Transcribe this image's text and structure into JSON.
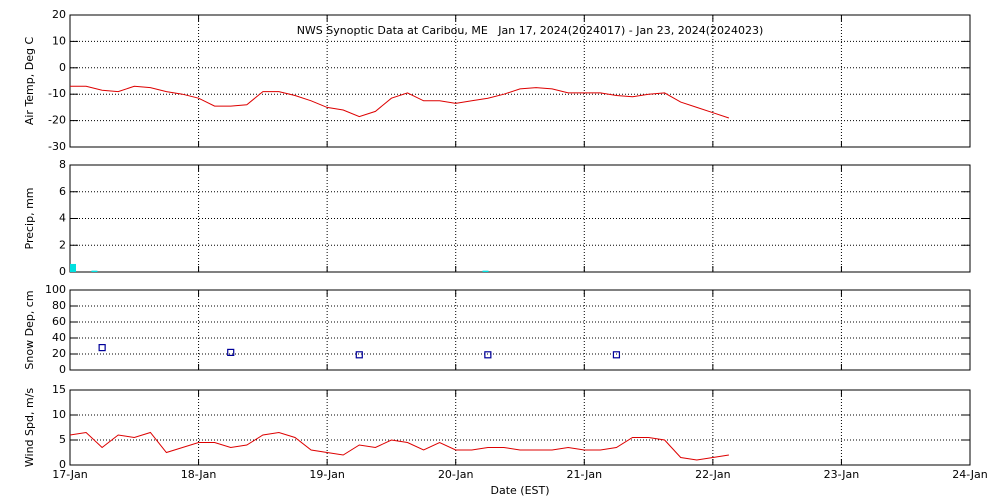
{
  "chart_data": [
    {
      "type": "line",
      "title": "NWS Synoptic Data at Caribou, ME   Jan 17, 2024(2024017) - Jan 23, 2024(2024023)",
      "y_label": "Air Temp, Deg C",
      "xlim": [
        "2024-01-17 00:00",
        "2024-01-24 00:00"
      ],
      "xticks": [
        "2024-01-17 00:00",
        "2024-01-18 00:00",
        "2024-01-19 00:00",
        "2024-01-20 00:00",
        "2024-01-21 00:00",
        "2024-01-22 00:00",
        "2024-01-23 00:00",
        "2024-01-24 00:00"
      ],
      "ylim": [
        -30,
        20
      ],
      "yticks": [
        -30,
        -20,
        -10,
        0,
        10,
        20
      ],
      "grid": true,
      "series": [
        {
          "color": "#dd0000",
          "x": [
            "2024-01-17 00:00",
            "2024-01-17 03:00",
            "2024-01-17 06:00",
            "2024-01-17 09:00",
            "2024-01-17 12:00",
            "2024-01-17 15:00",
            "2024-01-17 18:00",
            "2024-01-17 21:00",
            "2024-01-18 00:00",
            "2024-01-18 03:00",
            "2024-01-18 06:00",
            "2024-01-18 09:00",
            "2024-01-18 12:00",
            "2024-01-18 15:00",
            "2024-01-18 18:00",
            "2024-01-18 21:00",
            "2024-01-19 00:00",
            "2024-01-19 03:00",
            "2024-01-19 06:00",
            "2024-01-19 09:00",
            "2024-01-19 12:00",
            "2024-01-19 15:00",
            "2024-01-19 18:00",
            "2024-01-19 21:00",
            "2024-01-20 00:00",
            "2024-01-20 03:00",
            "2024-01-20 06:00",
            "2024-01-20 09:00",
            "2024-01-20 12:00",
            "2024-01-20 15:00",
            "2024-01-20 18:00",
            "2024-01-20 21:00",
            "2024-01-21 00:00",
            "2024-01-21 03:00",
            "2024-01-21 06:00",
            "2024-01-21 09:00",
            "2024-01-21 12:00",
            "2024-01-21 15:00",
            "2024-01-21 18:00",
            "2024-01-21 21:00",
            "2024-01-22 00:00",
            "2024-01-22 03:00"
          ],
          "values": [
            -7,
            -7,
            -8.5,
            -9,
            -7,
            -7.5,
            -9,
            -10,
            -11.5,
            -14.5,
            -14.5,
            -14,
            -9,
            -9,
            -10.5,
            -12.5,
            -15,
            -16,
            -18.5,
            -16.5,
            -11.5,
            -9.5,
            -12.5,
            -12.5,
            -13.5,
            -12.5,
            -11.5,
            -10,
            -8,
            -7.5,
            -8,
            -9.5,
            -9.5,
            -9.5,
            -10.5,
            -11,
            -10,
            -9.5,
            -13,
            -15,
            -17,
            -19
          ]
        }
      ]
    },
    {
      "type": "bar",
      "y_label": "Precip, mm",
      "xlim": [
        "2024-01-17 00:00",
        "2024-01-24 00:00"
      ],
      "xticks": [
        "2024-01-17 00:00",
        "2024-01-18 00:00",
        "2024-01-19 00:00",
        "2024-01-20 00:00",
        "2024-01-21 00:00",
        "2024-01-22 00:00",
        "2024-01-23 00:00",
        "2024-01-24 00:00"
      ],
      "ylim": [
        0,
        8
      ],
      "yticks": [
        0,
        2,
        4,
        6,
        8
      ],
      "grid": true,
      "series": [
        {
          "color": "#00e0e0",
          "x": [
            "2024-01-17 00:00",
            "2024-01-17 04:00",
            "2024-01-20 05:00"
          ],
          "values": [
            0.6,
            0.1,
            0.1
          ]
        }
      ]
    },
    {
      "type": "scatter",
      "y_label": "Snow Dep, cm",
      "xlim": [
        "2024-01-17 00:00",
        "2024-01-24 00:00"
      ],
      "xticks": [
        "2024-01-17 00:00",
        "2024-01-18 00:00",
        "2024-01-19 00:00",
        "2024-01-20 00:00",
        "2024-01-21 00:00",
        "2024-01-22 00:00",
        "2024-01-23 00:00",
        "2024-01-24 00:00"
      ],
      "ylim": [
        0,
        100
      ],
      "yticks": [
        0,
        20,
        40,
        60,
        80,
        100
      ],
      "grid": true,
      "series": [
        {
          "color": "#000099",
          "x": [
            "2024-01-17 06:00",
            "2024-01-18 06:00",
            "2024-01-19 06:00",
            "2024-01-20 06:00",
            "2024-01-21 06:00"
          ],
          "values": [
            28,
            22,
            19,
            19,
            19
          ]
        }
      ]
    },
    {
      "type": "line",
      "y_label": "Wind Spd, m/s",
      "x_label": "Date (EST)",
      "xlim": [
        "2024-01-17 00:00",
        "2024-01-24 00:00"
      ],
      "xticks": [
        {
          "value": "2024-01-17 00:00",
          "label": "17-Jan"
        },
        {
          "value": "2024-01-18 00:00",
          "label": "18-Jan"
        },
        {
          "value": "2024-01-19 00:00",
          "label": "19-Jan"
        },
        {
          "value": "2024-01-20 00:00",
          "label": "20-Jan"
        },
        {
          "value": "2024-01-21 00:00",
          "label": "21-Jan"
        },
        {
          "value": "2024-01-22 00:00",
          "label": "22-Jan"
        },
        {
          "value": "2024-01-23 00:00",
          "label": "23-Jan"
        },
        {
          "value": "2024-01-24 00:00",
          "label": "24-Jan"
        }
      ],
      "ylim": [
        0,
        15
      ],
      "yticks": [
        0,
        5,
        10,
        15
      ],
      "grid": true,
      "series": [
        {
          "color": "#dd0000",
          "x": [
            "2024-01-17 00:00",
            "2024-01-17 03:00",
            "2024-01-17 06:00",
            "2024-01-17 09:00",
            "2024-01-17 12:00",
            "2024-01-17 15:00",
            "2024-01-17 18:00",
            "2024-01-17 21:00",
            "2024-01-18 00:00",
            "2024-01-18 03:00",
            "2024-01-18 06:00",
            "2024-01-18 09:00",
            "2024-01-18 12:00",
            "2024-01-18 15:00",
            "2024-01-18 18:00",
            "2024-01-18 21:00",
            "2024-01-19 00:00",
            "2024-01-19 03:00",
            "2024-01-19 06:00",
            "2024-01-19 09:00",
            "2024-01-19 12:00",
            "2024-01-19 15:00",
            "2024-01-19 18:00",
            "2024-01-19 21:00",
            "2024-01-20 00:00",
            "2024-01-20 03:00",
            "2024-01-20 06:00",
            "2024-01-20 09:00",
            "2024-01-20 12:00",
            "2024-01-20 15:00",
            "2024-01-20 18:00",
            "2024-01-20 21:00",
            "2024-01-21 00:00",
            "2024-01-21 03:00",
            "2024-01-21 06:00",
            "2024-01-21 09:00",
            "2024-01-21 12:00",
            "2024-01-21 15:00",
            "2024-01-21 18:00",
            "2024-01-21 21:00",
            "2024-01-22 00:00",
            "2024-01-22 03:00"
          ],
          "values": [
            6,
            6.5,
            3.5,
            6,
            5.5,
            6.5,
            2.5,
            3.5,
            4.5,
            4.5,
            3.5,
            4,
            6,
            6.5,
            5.5,
            3,
            2.5,
            2,
            4,
            3.5,
            5,
            4.5,
            3,
            4.5,
            3,
            3,
            3.5,
            3.5,
            3,
            3,
            3,
            3.5,
            3,
            3,
            3.5,
            5.5,
            5.5,
            5,
            1.5,
            1,
            1.5,
            2
          ]
        }
      ]
    }
  ]
}
